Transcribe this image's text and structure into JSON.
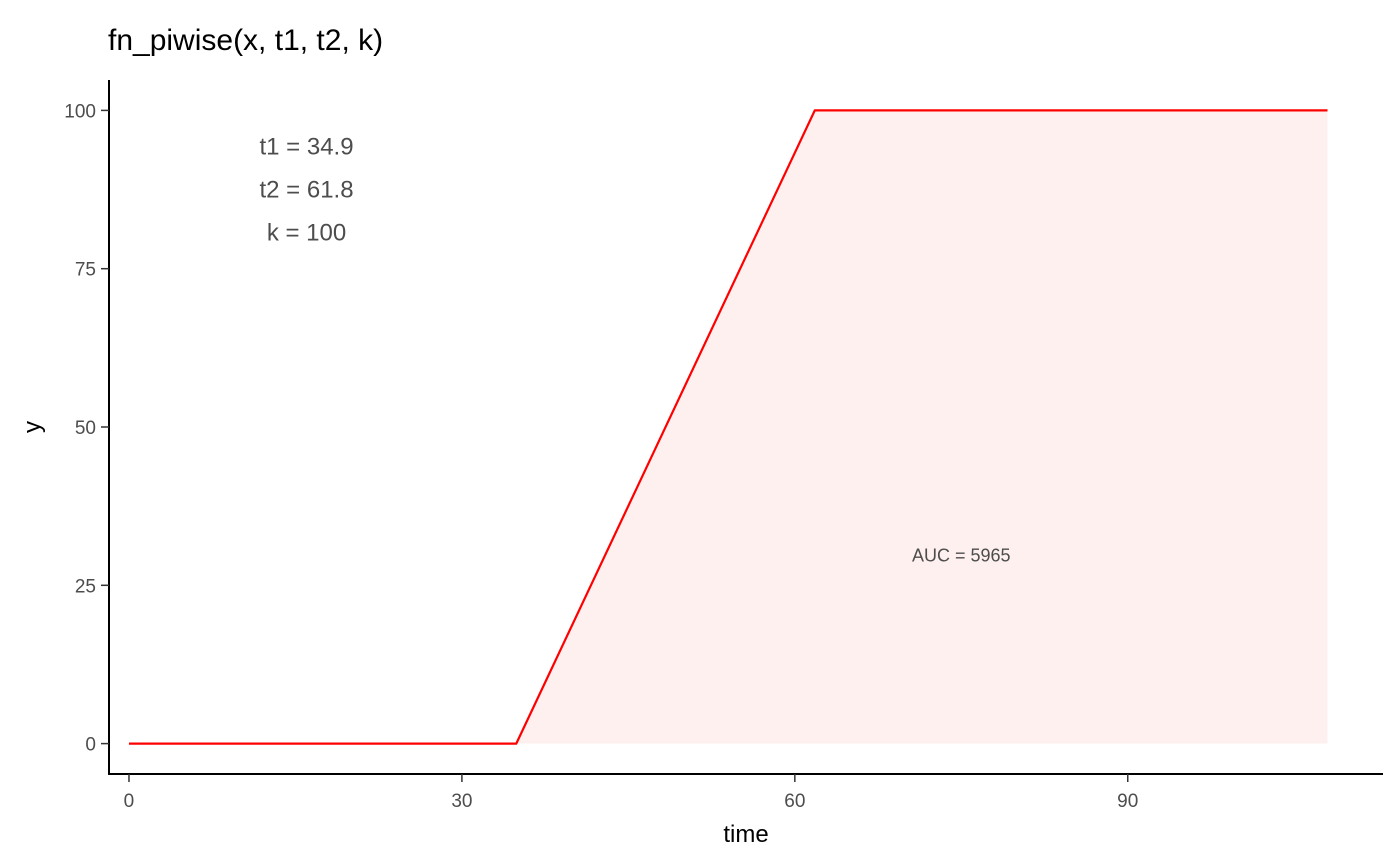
{
  "chart_data": {
    "type": "line",
    "title": "fn_piwise(x, t1, t2, k)",
    "xlabel": "time",
    "ylabel": "y",
    "xlim": [
      -1.8,
      113
    ],
    "ylim": [
      -4.8,
      104.8
    ],
    "xticks": [
      0,
      30,
      60,
      90
    ],
    "yticks": [
      0,
      25,
      50,
      75,
      100
    ],
    "grid": false,
    "series": [
      {
        "color": "#ff0000",
        "x": [
          0,
          34.9,
          61.8,
          108
        ],
        "y": [
          0,
          0,
          100,
          100
        ]
      }
    ],
    "area": {
      "fill": "#ff0000",
      "opacity": 0.06,
      "x": [
        34.9,
        61.8,
        108
      ],
      "y": [
        0,
        100,
        100
      ]
    },
    "annotations": [
      {
        "lines": [
          "t1 = 34.9",
          "t2 = 61.8",
          "k = 100"
        ],
        "x": 16,
        "y": 87.5
      },
      {
        "lines": [
          "AUC = 5965"
        ],
        "x": 75,
        "y": 30
      }
    ]
  }
}
